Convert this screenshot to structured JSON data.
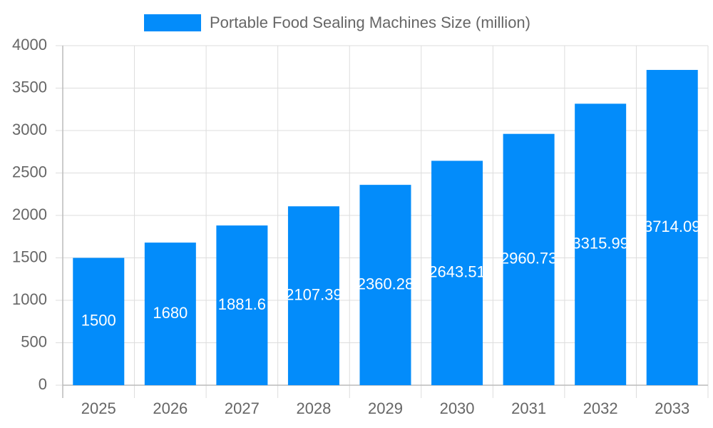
{
  "chart_data": {
    "type": "bar",
    "categories": [
      "2025",
      "2026",
      "2027",
      "2028",
      "2029",
      "2030",
      "2031",
      "2032",
      "2033"
    ],
    "series": [
      {
        "name": "Portable Food Sealing Machines Size (million)",
        "color": "#038cfa",
        "values": [
          1500,
          1680,
          1881.6,
          2107.39,
          2360.28,
          2643.51,
          2960.73,
          3315.99,
          3714.09
        ]
      }
    ],
    "ylim": [
      0,
      4000
    ],
    "yticks": [
      0,
      500,
      1000,
      1500,
      2000,
      2500,
      3000,
      3500,
      4000
    ],
    "grid": true,
    "legend": "top",
    "data_labels": true
  }
}
